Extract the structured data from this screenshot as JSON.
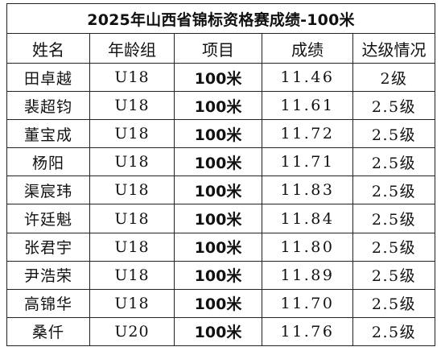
{
  "table": {
    "title": "2025年山西省锦标资格赛成绩-100米",
    "headers": [
      "姓名",
      "年龄组",
      "项目",
      "成绩",
      "达级情况"
    ],
    "rows": [
      {
        "name": "田卓越",
        "age_group": "U18",
        "event": "100米",
        "result": "11.46",
        "level": "2级"
      },
      {
        "name": "裴超钧",
        "age_group": "U18",
        "event": "100米",
        "result": "11.61",
        "level": "2.5级"
      },
      {
        "name": "董宝成",
        "age_group": "U18",
        "event": "100米",
        "result": "11.72",
        "level": "2.5级"
      },
      {
        "name": "杨阳",
        "age_group": "U18",
        "event": "100米",
        "result": "11.71",
        "level": "2.5级"
      },
      {
        "name": "渠宸玮",
        "age_group": "U18",
        "event": "100米",
        "result": "11.83",
        "level": "2.5级"
      },
      {
        "name": "许廷魁",
        "age_group": "U18",
        "event": "100米",
        "result": "11.84",
        "level": "2.5级"
      },
      {
        "name": "张君宇",
        "age_group": "U18",
        "event": "100米",
        "result": "11.80",
        "level": "2.5级"
      },
      {
        "name": "尹浩荣",
        "age_group": "U18",
        "event": "100米",
        "result": "11.89",
        "level": "2.5级"
      },
      {
        "name": "高锦华",
        "age_group": "U18",
        "event": "100米",
        "result": "11.70",
        "level": "2.5级"
      },
      {
        "name": "桑仟",
        "age_group": "U20",
        "event": "100米",
        "result": "11.76",
        "level": "2.5级"
      }
    ]
  }
}
